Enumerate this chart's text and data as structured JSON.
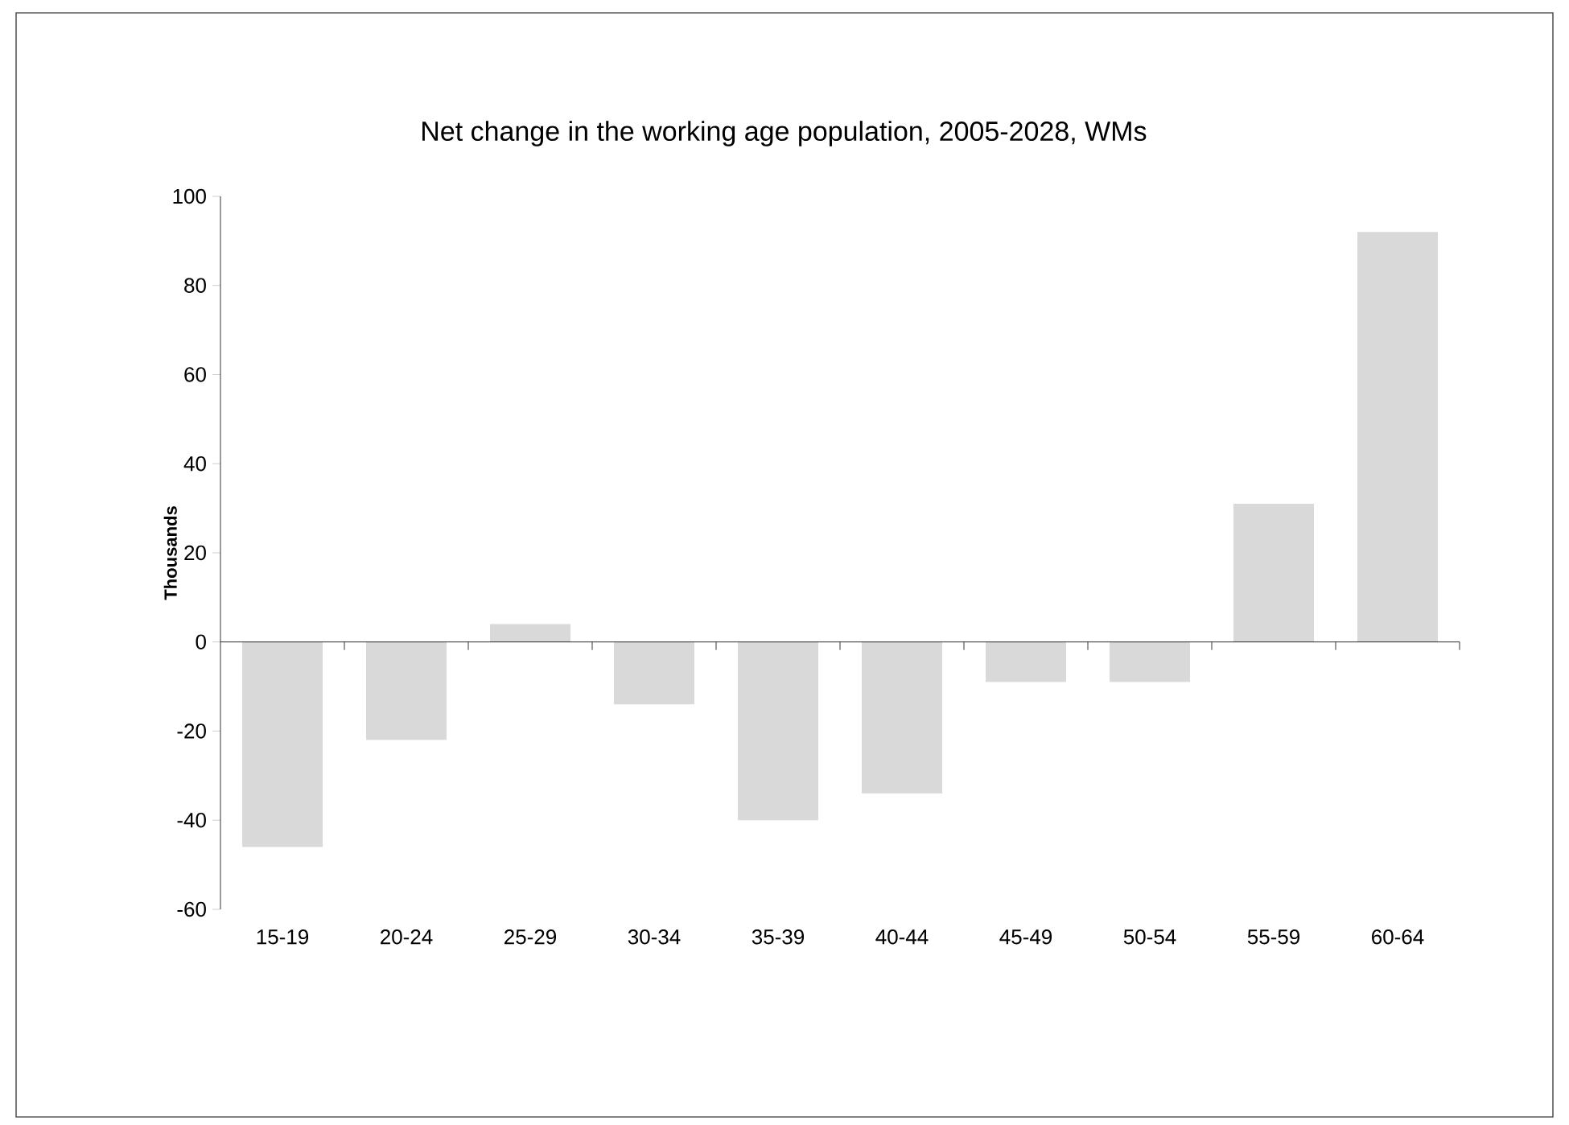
{
  "chart_data": {
    "type": "bar",
    "title": "Net change in the working age population, 2005-2028, WMs",
    "ylabel": "Thousands",
    "categories": [
      "15-19",
      "20-24",
      "25-29",
      "30-34",
      "35-39",
      "40-44",
      "45-49",
      "50-54",
      "55-59",
      "60-64"
    ],
    "values": [
      -46,
      -22,
      4,
      -14,
      -40,
      -34,
      -9,
      -9,
      31,
      92
    ],
    "color": "#d9d9d9",
    "ylim": [
      -60,
      100
    ],
    "yticks": [
      -60,
      -40,
      -20,
      0,
      20,
      40,
      60,
      80,
      100
    ]
  }
}
